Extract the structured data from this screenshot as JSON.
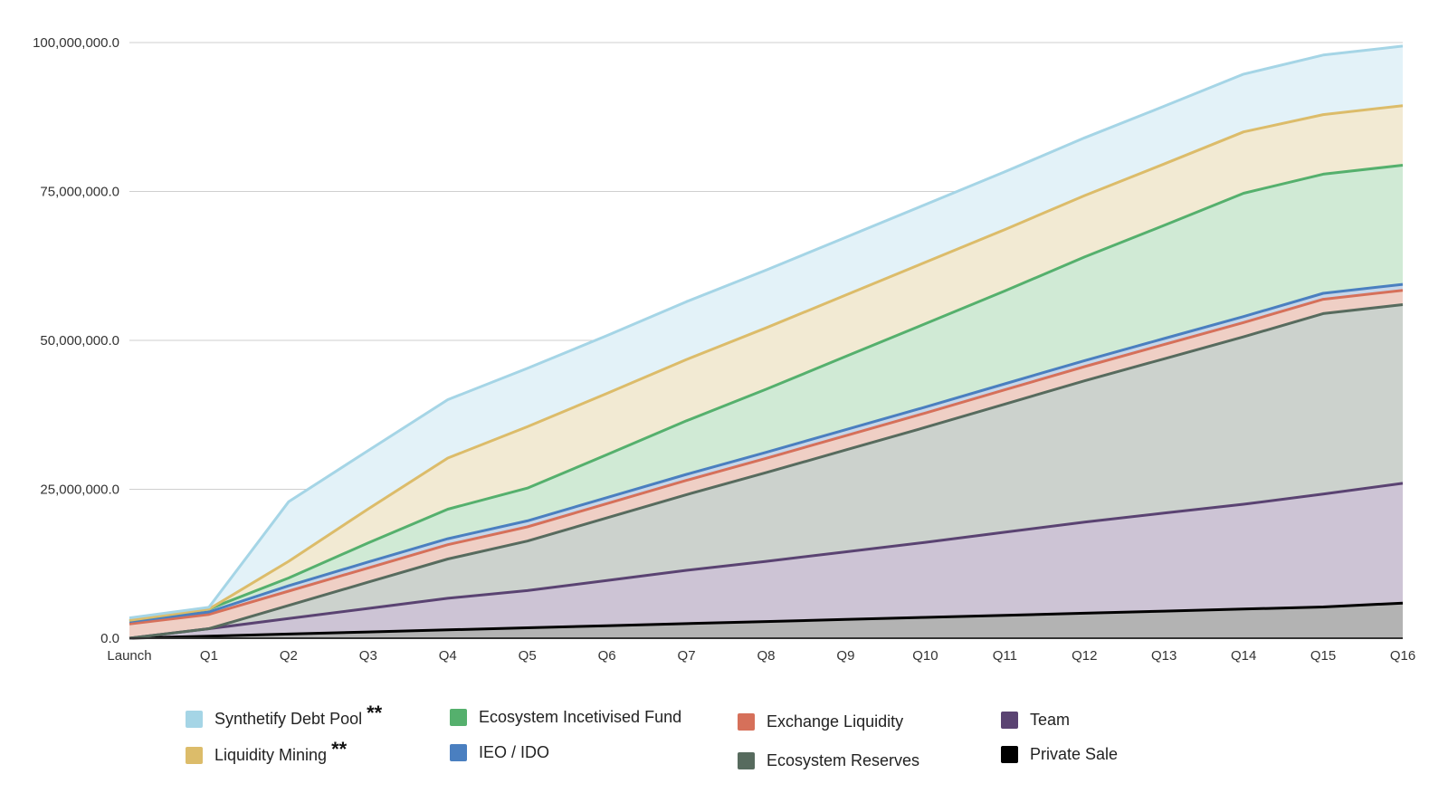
{
  "chart_data": {
    "type": "area",
    "stacked": true,
    "title": "",
    "xlabel": "",
    "ylabel": "",
    "categories": [
      "Launch",
      "Q1",
      "Q2",
      "Q3",
      "Q4",
      "Q5",
      "Q6",
      "Q7",
      "Q8",
      "Q9",
      "Q10",
      "Q11",
      "Q12",
      "Q13",
      "Q14",
      "Q15",
      "Q16"
    ],
    "ylim": [
      0,
      100000000
    ],
    "yticks": [
      0,
      25000000,
      50000000,
      75000000,
      100000000
    ],
    "ytick_labels": [
      "0.0",
      "25,000,000.0",
      "50,000,000.0",
      "75,000,000.0",
      "100,000,000.0"
    ],
    "grid": true,
    "legend_position": "bottom",
    "series": [
      {
        "name": "Private Sale",
        "color": "#000000",
        "fill": "#b3b3b3",
        "values": [
          0,
          350000,
          700000,
          1050000,
          1400000,
          1750000,
          2100000,
          2450000,
          2800000,
          3150000,
          3500000,
          3850000,
          4200000,
          4550000,
          4900000,
          5250000,
          5900000
        ]
      },
      {
        "name": "Team",
        "color": "#5a4372",
        "fill": "#cdc4d5",
        "values": [
          0,
          1250000,
          2600000,
          3950000,
          5300000,
          6250000,
          7600000,
          8950000,
          10100000,
          11350000,
          12600000,
          13950000,
          15300000,
          16450000,
          17600000,
          18950000,
          20100000
        ]
      },
      {
        "name": "Ecosystem Reserves",
        "color": "#576b5e",
        "fill": "#ccd2cd",
        "values": [
          0,
          0,
          2200000,
          4400000,
          6600000,
          8300000,
          10500000,
          12700000,
          14900000,
          17100000,
          19300000,
          21500000,
          23700000,
          25900000,
          28100000,
          30300000,
          30000000
        ]
      },
      {
        "name": "Exchange Liquidity",
        "color": "#d6705a",
        "fill": "#efcfc5",
        "values": [
          2400000,
          2400000,
          2400000,
          2400000,
          2400000,
          2400000,
          2400000,
          2400000,
          2400000,
          2400000,
          2400000,
          2400000,
          2400000,
          2400000,
          2400000,
          2400000,
          2400000
        ]
      },
      {
        "name": "IEO / IDO",
        "color": "#4a7fc0",
        "fill": "#c6d6e9",
        "values": [
          400000,
          400000,
          900000,
          1000000,
          1000000,
          1000000,
          1000000,
          1000000,
          1000000,
          1000000,
          1000000,
          1000000,
          1000000,
          1000000,
          1000000,
          1000000,
          1000000
        ]
      },
      {
        "name": "Ecosystem Incetivised Fund",
        "color": "#55b06d",
        "fill": "#d0ead5",
        "values": [
          200000,
          500000,
          1300000,
          3200000,
          4950000,
          5500000,
          7200000,
          9000000,
          10600000,
          12300000,
          14000000,
          15600000,
          17400000,
          19000000,
          20700000,
          20000000,
          20000000
        ]
      },
      {
        "name": "Liquidity Mining",
        "color": "#dcbc6a",
        "fill": "#f2ead3",
        "values": [
          0,
          0,
          2800000,
          5700000,
          8600000,
          10300000,
          10300000,
          10300000,
          10300000,
          10300000,
          10300000,
          10300000,
          10300000,
          10300000,
          10300000,
          10000000,
          10000000
        ]
      },
      {
        "name": "Synthetify Debt Pool",
        "color": "#a5d5e6",
        "fill": "#e3f2f8",
        "values": [
          400000,
          300000,
          10000000,
          9800000,
          9800000,
          9800000,
          9700000,
          9700000,
          9700000,
          9700000,
          9700000,
          9700000,
          9700000,
          9700000,
          9700000,
          10000000,
          10000000
        ]
      }
    ],
    "legend": [
      {
        "label": "Synthetify Debt Pool",
        "note": "**",
        "color": "#a5d5e6"
      },
      {
        "label": "Liquidity Mining",
        "note": "**",
        "color": "#dcbc6a"
      },
      {
        "label": "Ecosystem Incetivised Fund",
        "note": "",
        "color": "#55b06d"
      },
      {
        "label": "IEO / IDO",
        "note": "",
        "color": "#4a7fc0"
      },
      {
        "label": "Exchange Liquidity",
        "note": "",
        "color": "#d6705a"
      },
      {
        "label": "Ecosystem Reserves",
        "note": "",
        "color": "#576b5e"
      },
      {
        "label": "Team",
        "note": "",
        "color": "#5a4372"
      },
      {
        "label": "Private Sale",
        "note": "",
        "color": "#000000"
      }
    ]
  }
}
